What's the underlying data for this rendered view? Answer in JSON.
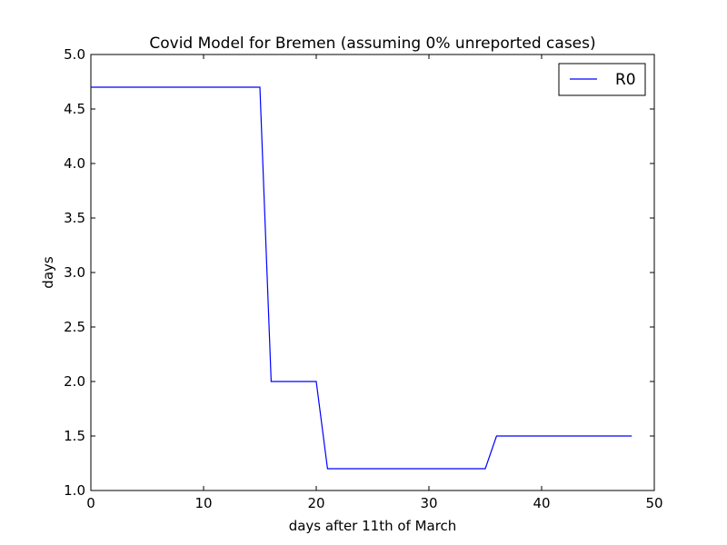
{
  "chart_data": {
    "type": "line",
    "title": "Covid Model for Bremen (assuming 0% unreported cases)",
    "xlabel": "days after 11th of March",
    "ylabel": "days",
    "xlim": [
      0,
      50
    ],
    "ylim": [
      1.0,
      5.0
    ],
    "xticks": [
      0,
      10,
      20,
      30,
      40,
      50
    ],
    "xtick_labels": [
      "0",
      "10",
      "20",
      "30",
      "40",
      "50"
    ],
    "yticks": [
      1.0,
      1.5,
      2.0,
      2.5,
      3.0,
      3.5,
      4.0,
      4.5,
      5.0
    ],
    "ytick_labels": [
      "1.0",
      "1.5",
      "2.0",
      "2.5",
      "3.0",
      "3.5",
      "4.0",
      "4.5",
      "5.0"
    ],
    "grid": false,
    "legend_position": "top-right",
    "series": [
      {
        "name": "R0",
        "color": "#0000ff",
        "x": [
          0,
          15,
          16,
          20,
          21,
          35,
          36,
          48
        ],
        "y": [
          4.7,
          4.7,
          2.0,
          2.0,
          1.2,
          1.2,
          1.5,
          1.5
        ]
      }
    ]
  }
}
